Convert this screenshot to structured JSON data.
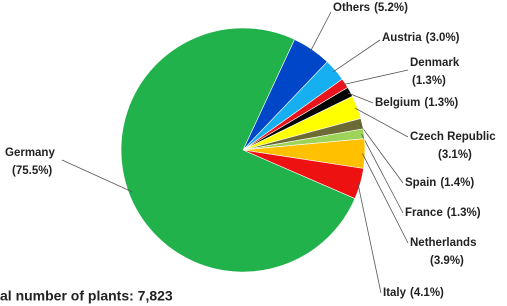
{
  "chart_data": {
    "type": "pie",
    "title": "al number of plants: 7,823",
    "categories": [
      "Others",
      "Austria",
      "Denmark",
      "Belgium",
      "Czech Republic",
      "Spain",
      "France",
      "Netherlands",
      "Italy",
      "Germany"
    ],
    "values": [
      5.2,
      3.0,
      1.3,
      1.3,
      3.1,
      1.4,
      1.3,
      3.9,
      4.1,
      75.5
    ],
    "value_labels": [
      "(5.2%)",
      "(3.0%)",
      "(1.3%)",
      "(1.3%)",
      "(3.1%)",
      "(1.4%)",
      "(1.3%)",
      "(3.9%)",
      "(4.1%)",
      "(75.5%)"
    ],
    "colors": [
      "#0046c8",
      "#16aff0",
      "#e8141c",
      "#000000",
      "#ffff00",
      "#6b6b33",
      "#9ed35a",
      "#ffc000",
      "#ee1111",
      "#22b24c"
    ]
  }
}
